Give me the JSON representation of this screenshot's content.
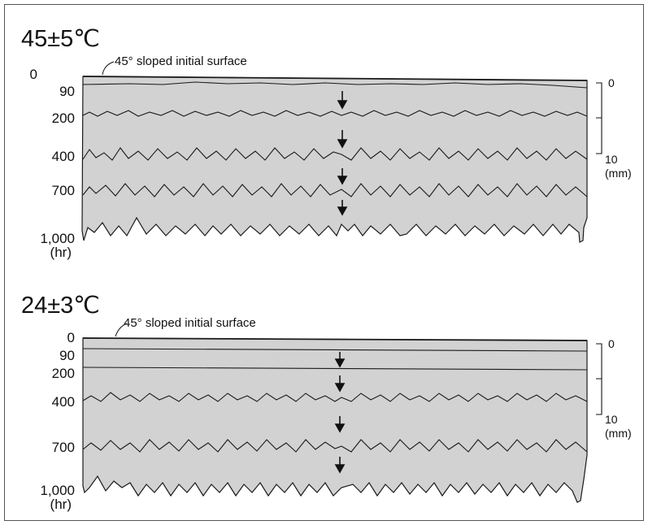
{
  "panels": [
    {
      "title": "45±5℃",
      "surface_note": "45° sloped initial surface",
      "time_labels": [
        "0",
        "90",
        "200",
        "400",
        "700",
        "1,000"
      ],
      "time_unit": "(hr)",
      "scale": {
        "top": "0",
        "bottom": "10",
        "unit": "(mm)"
      }
    },
    {
      "title": "24±3℃",
      "surface_note": "45° sloped initial surface",
      "time_labels": [
        "0",
        "90",
        "200",
        "400",
        "700",
        "1,000"
      ],
      "time_unit": "(hr)",
      "scale": {
        "top": "0",
        "bottom": "10",
        "unit": "(mm)"
      }
    }
  ],
  "colors": {
    "fill": "#d2d2d2",
    "line": "#1a1a1a"
  }
}
